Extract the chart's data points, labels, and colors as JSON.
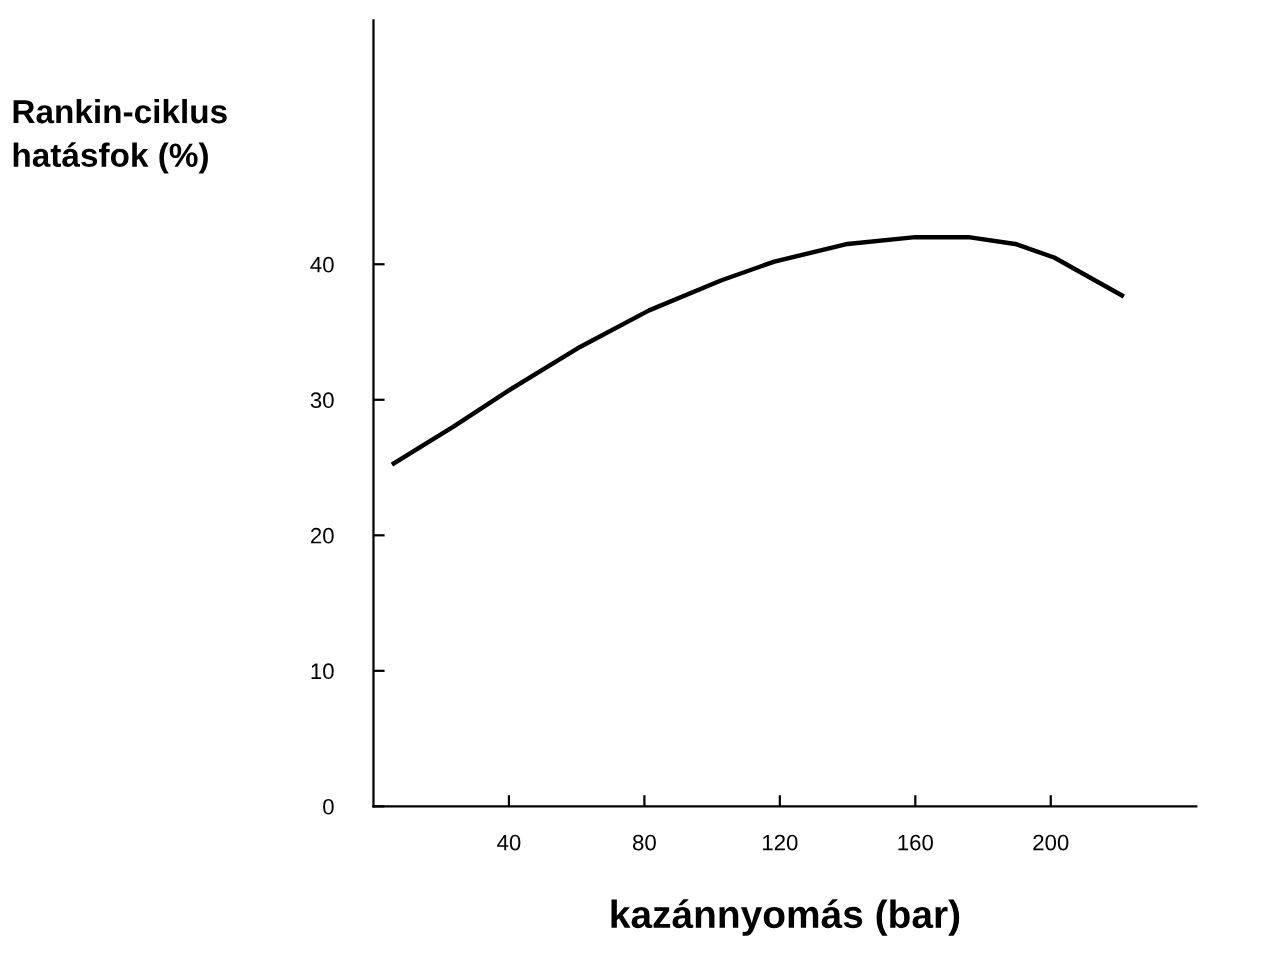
{
  "chart_data": {
    "type": "line",
    "xlabel": "kazánnyomás (bar)",
    "ylabel": "Rankin-ciklus\nhatásfok (%)",
    "series": [
      {
        "color": "#000000",
        "x": [
          6,
          23.5,
          40,
          61,
          81.4,
          102.6,
          118.4,
          140,
          160,
          175.7,
          189.5,
          201,
          221
        ],
        "values": [
          25.3,
          28.0,
          30.7,
          33.9,
          36.6,
          38.8,
          40.2,
          41.5,
          42.0,
          42.0,
          41.5,
          40.5,
          37.7
        ]
      }
    ],
    "xlim": [
      0,
      243
    ],
    "ylim": [
      0,
      58
    ],
    "xticks": [
      40,
      80,
      120,
      160,
      200
    ],
    "yticks": [
      0,
      10,
      20,
      30,
      40
    ],
    "grid": false,
    "legend": false,
    "marker": "none",
    "line_style": "solid"
  }
}
